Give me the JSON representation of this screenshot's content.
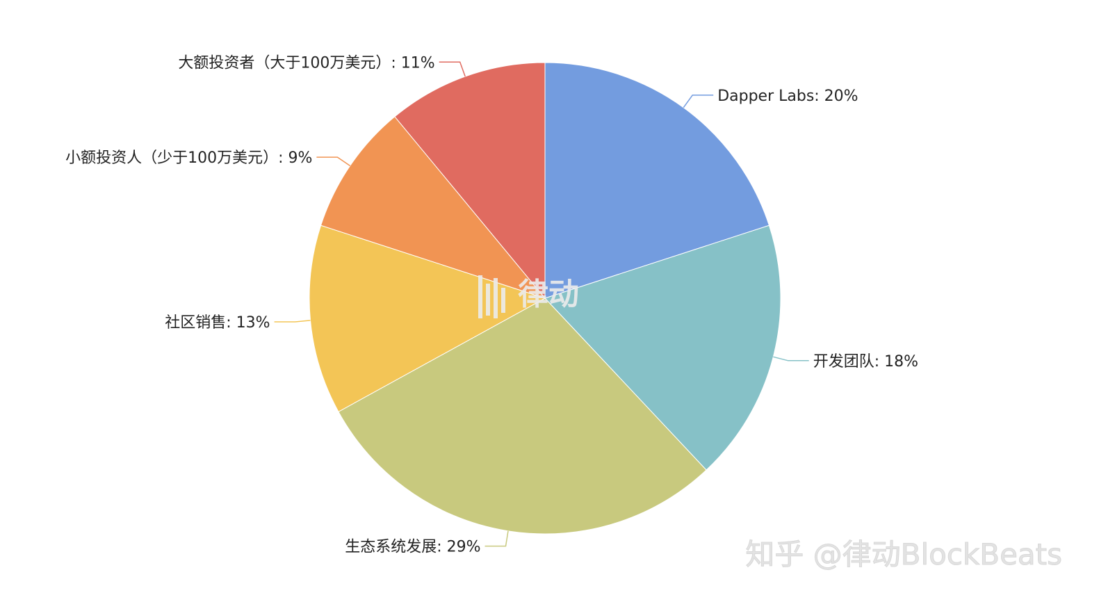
{
  "chart_data": {
    "type": "pie",
    "start_angle_deg": 90,
    "direction": "clockwise",
    "slices": [
      {
        "label": "Dapper Labs: 20%",
        "value": 20,
        "color": "#739cdf",
        "label_side": "right"
      },
      {
        "label": "开发团队: 18%",
        "value": 18,
        "color": "#86c1c7",
        "label_side": "right"
      },
      {
        "label": "生态系统发展: 29%",
        "value": 29,
        "color": "#c8c97e",
        "label_side": "left"
      },
      {
        "label": "社区销售: 13%",
        "value": 13,
        "color": "#f3c556",
        "label_side": "left"
      },
      {
        "label": "小额投资人（少于100万美元）: 9%",
        "value": 9,
        "color": "#f19453",
        "label_side": "left"
      },
      {
        "label": "大额投资者（大于100万美元）: 11%",
        "value": 11,
        "color": "#e06b60",
        "label_side": "left"
      }
    ]
  },
  "watermarks": {
    "center_logo_text": "律动",
    "corner_text": "知乎 @律动BlockBeats"
  }
}
